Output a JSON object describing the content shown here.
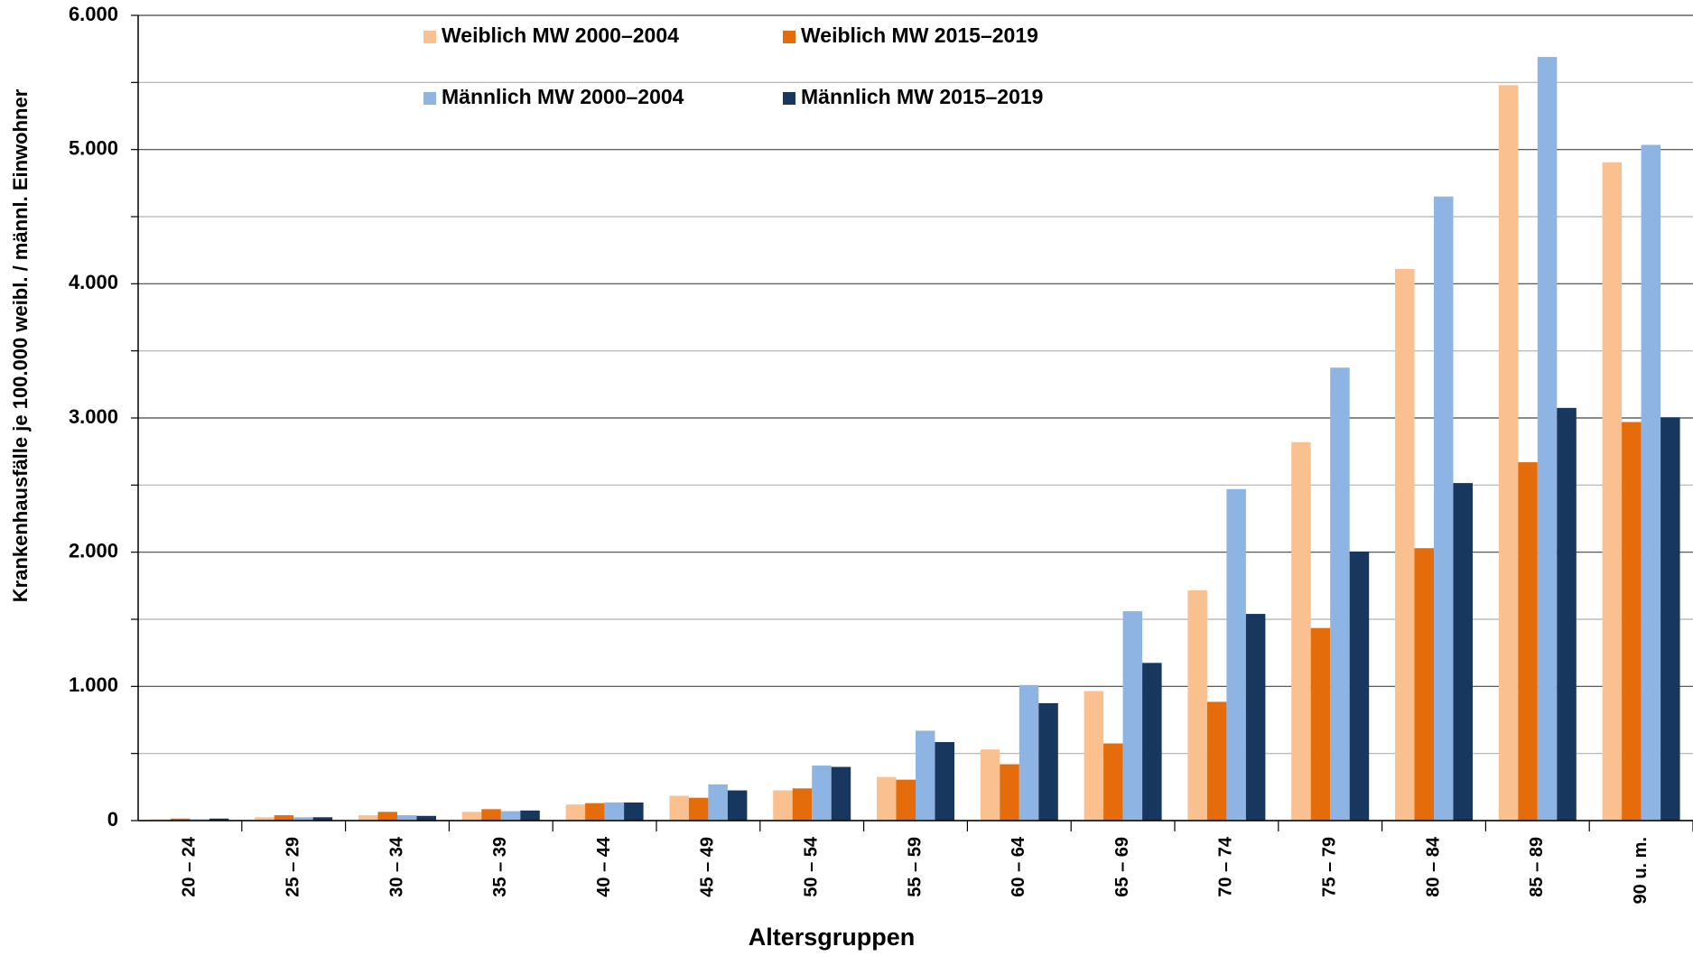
{
  "chart_data": {
    "type": "bar",
    "x_label": "Altersgruppen",
    "y_label": "Krankenhausfälle je 100.000 weibl. / männl. Einwohner",
    "categories": [
      "20 – 24",
      "25 – 29",
      "30 – 34",
      "35 – 39",
      "40 – 44",
      "45 – 49",
      "50 – 54",
      "55 – 59",
      "60 – 64",
      "65 – 69",
      "70 – 74",
      "75 – 79",
      "80 – 84",
      "85 – 89",
      "90 u. m."
    ],
    "series": [
      {
        "name": "Weiblich MW 2000–2004",
        "color": "#fac090",
        "values": [
          10,
          25,
          40,
          65,
          120,
          185,
          225,
          325,
          530,
          965,
          1715,
          2820,
          4110,
          5480,
          4905
        ]
      },
      {
        "name": "Weiblich MW 2015–2019",
        "color": "#e46c0a",
        "values": [
          15,
          40,
          65,
          85,
          130,
          170,
          240,
          305,
          420,
          575,
          885,
          1435,
          2030,
          2670,
          2970
        ]
      },
      {
        "name": "Männlich MW 2000–2004",
        "color": "#8eb4e3",
        "values": [
          10,
          25,
          40,
          70,
          135,
          270,
          410,
          670,
          1010,
          1560,
          2470,
          3375,
          4650,
          5690,
          5035
        ]
      },
      {
        "name": "Männlich MW 2015–2019",
        "color": "#17375e",
        "values": [
          15,
          25,
          35,
          75,
          135,
          225,
          400,
          585,
          875,
          1175,
          1540,
          2005,
          2515,
          3075,
          3005
        ]
      }
    ],
    "ylim": [
      0,
      6000
    ],
    "yticks": [
      0,
      {
        "value": 1000,
        "label": "1.000"
      },
      {
        "value": 2000,
        "label": "2.000"
      },
      {
        "value": 3000,
        "label": "3.000"
      },
      {
        "value": 4000,
        "label": "4.000"
      },
      {
        "value": 5000,
        "label": "5.000"
      },
      {
        "value": 6000,
        "label": "6.000"
      }
    ],
    "minor_yticks": [
      500,
      1500,
      2500,
      3500,
      4500,
      5500
    ],
    "grid": true
  }
}
